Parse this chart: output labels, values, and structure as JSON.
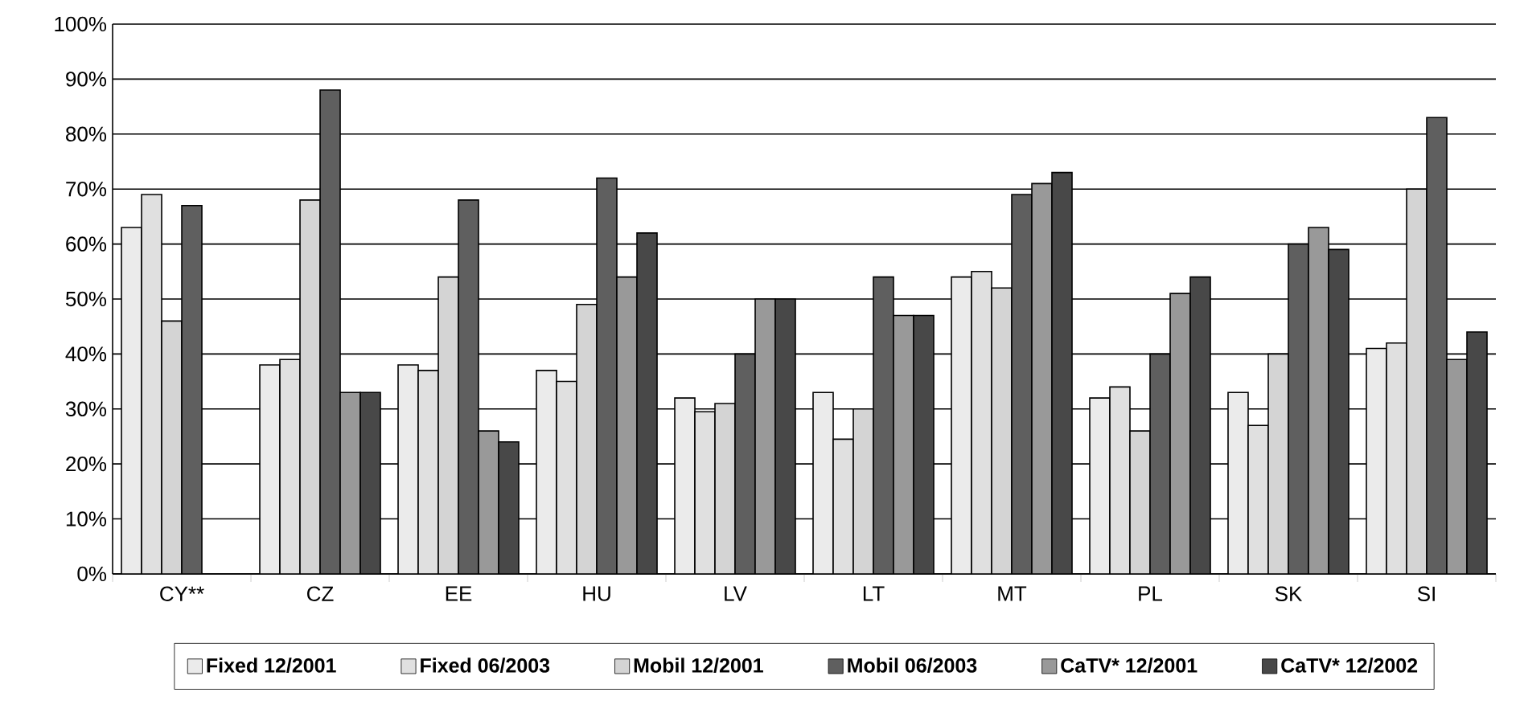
{
  "chart_data": {
    "type": "bar",
    "categories": [
      "CY**",
      "CZ",
      "EE",
      "HU",
      "LV",
      "LT",
      "MT",
      "PL",
      "SK",
      "SI"
    ],
    "series": [
      {
        "name": "Fixed 12/2001",
        "color": "#ebebeb",
        "values": [
          63,
          38,
          38,
          37,
          32,
          33,
          54,
          32,
          33,
          41
        ]
      },
      {
        "name": "Fixed 06/2003",
        "color": "#e0e0e0",
        "values": [
          69,
          39,
          37,
          35,
          29.5,
          24.5,
          55,
          34,
          27,
          42
        ]
      },
      {
        "name": "Mobil 12/2001",
        "color": "#d4d4d4",
        "values": [
          46,
          68,
          54,
          49,
          31,
          30,
          52,
          26,
          40,
          70
        ]
      },
      {
        "name": "Mobil 06/2003",
        "color": "#5f5f5f",
        "values": [
          67,
          88,
          68,
          72,
          40,
          54,
          69,
          40,
          60,
          83
        ]
      },
      {
        "name": "CaTV* 12/2001",
        "color": "#999999",
        "values": [
          null,
          33,
          26,
          54,
          50,
          47,
          71,
          51,
          63,
          39
        ]
      },
      {
        "name": "CaTV* 12/2002",
        "color": "#484848",
        "values": [
          null,
          33,
          24,
          62,
          50,
          47,
          73,
          54,
          59,
          44
        ]
      }
    ],
    "ylim": [
      0,
      100
    ],
    "yticks": [
      {
        "value": 0,
        "label": "0%"
      },
      {
        "value": 10,
        "label": "10%"
      },
      {
        "value": 20,
        "label": "20%"
      },
      {
        "value": 30,
        "label": "30%"
      },
      {
        "value": 40,
        "label": "40%"
      },
      {
        "value": 50,
        "label": "50%"
      },
      {
        "value": 60,
        "label": "60%"
      },
      {
        "value": 70,
        "label": "70%"
      },
      {
        "value": 80,
        "label": "80%"
      },
      {
        "value": 90,
        "label": "90%"
      },
      {
        "value": 100,
        "label": "100%"
      }
    ],
    "grid": "y",
    "legend": "bottom"
  }
}
